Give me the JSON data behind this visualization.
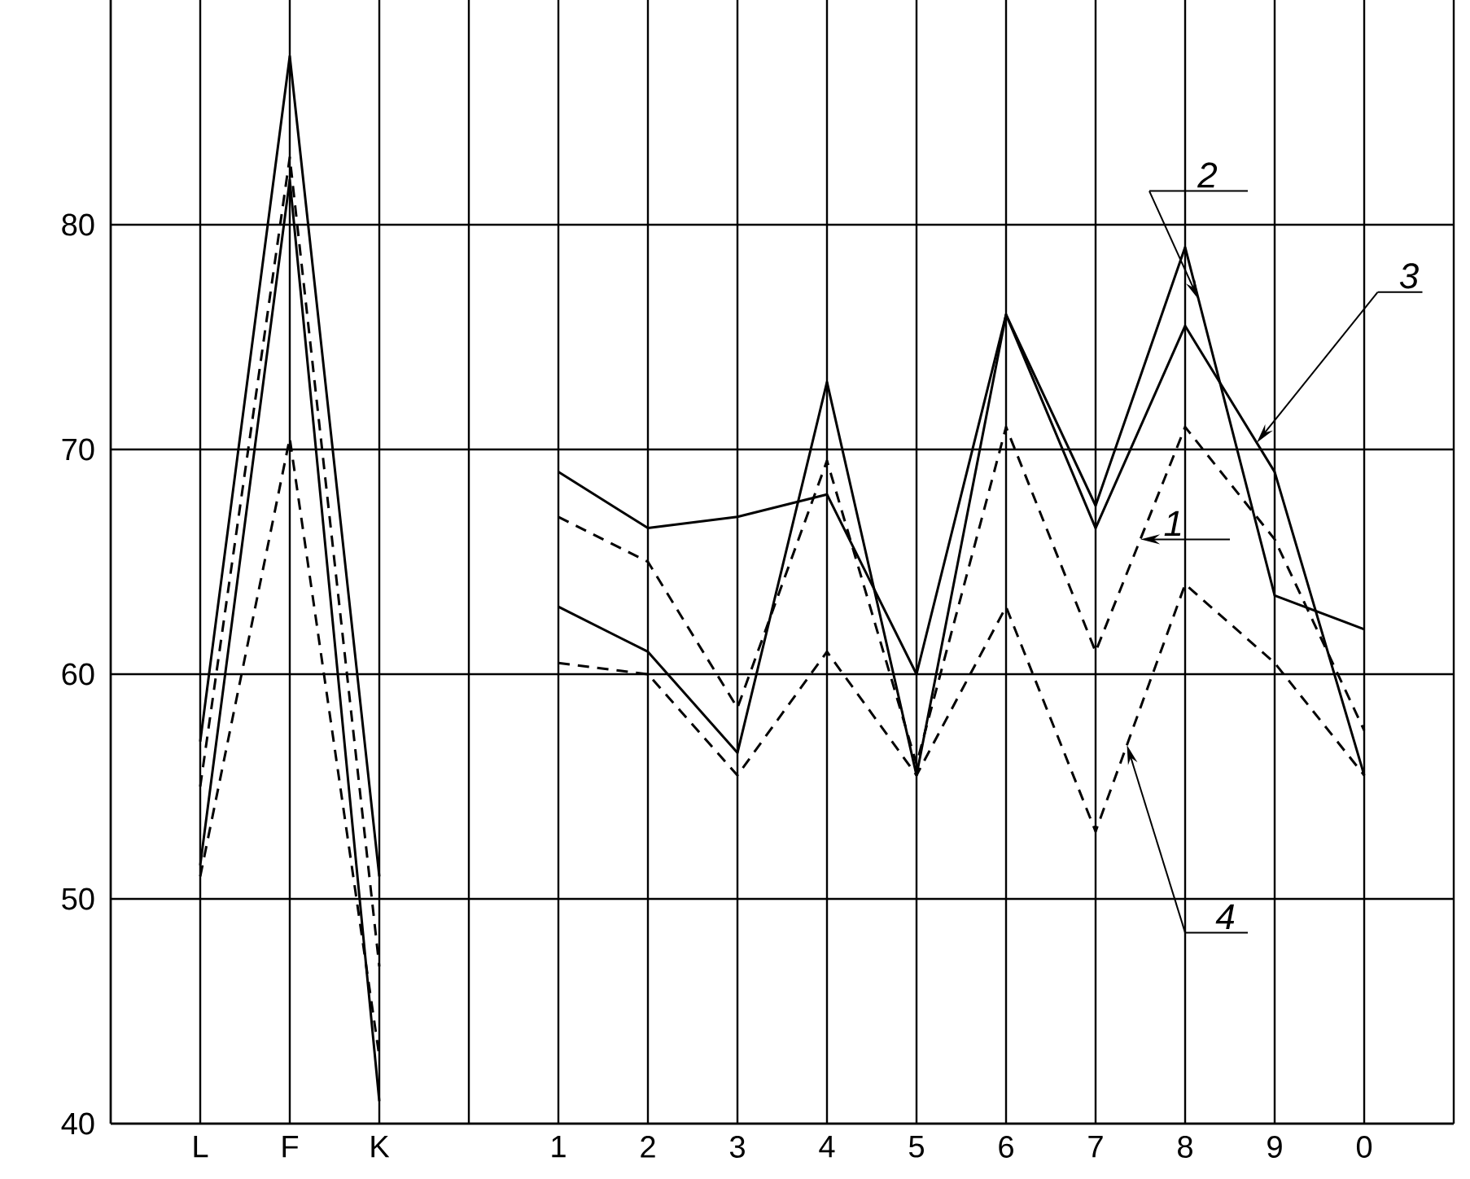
{
  "chart_data": {
    "type": "line",
    "categories": [
      "L",
      "F",
      "K",
      null,
      "1",
      "2",
      "3",
      "4",
      "5",
      "6",
      "7",
      "8",
      "9",
      "0"
    ],
    "series": [
      {
        "name": "1",
        "color": "#000000",
        "line_style": "dashed",
        "values": [
          55,
          83,
          47,
          null,
          67,
          65,
          58.5,
          69.5,
          56,
          71,
          61,
          71,
          66,
          57.5
        ]
      },
      {
        "name": "2",
        "color": "#000000",
        "line_style": "solid",
        "values": [
          57,
          87.5,
          51,
          null,
          69,
          66.5,
          67,
          68,
          60,
          76,
          67.5,
          79,
          63.5,
          62
        ]
      },
      {
        "name": "3",
        "color": "#000000",
        "line_style": "solid",
        "values": [
          51.5,
          82,
          41,
          null,
          63,
          61,
          56.5,
          73,
          55.5,
          76,
          66.5,
          75.5,
          69,
          55.5
        ]
      },
      {
        "name": "4",
        "color": "#000000",
        "line_style": "dashed",
        "values": [
          51,
          70.5,
          43,
          null,
          60.5,
          60,
          55.5,
          61,
          55.5,
          63,
          53,
          64,
          60.5,
          55.5
        ]
      }
    ],
    "ylim": [
      40,
      90
    ],
    "yticks": [
      40,
      50,
      60,
      70,
      80
    ],
    "grid": true
  }
}
